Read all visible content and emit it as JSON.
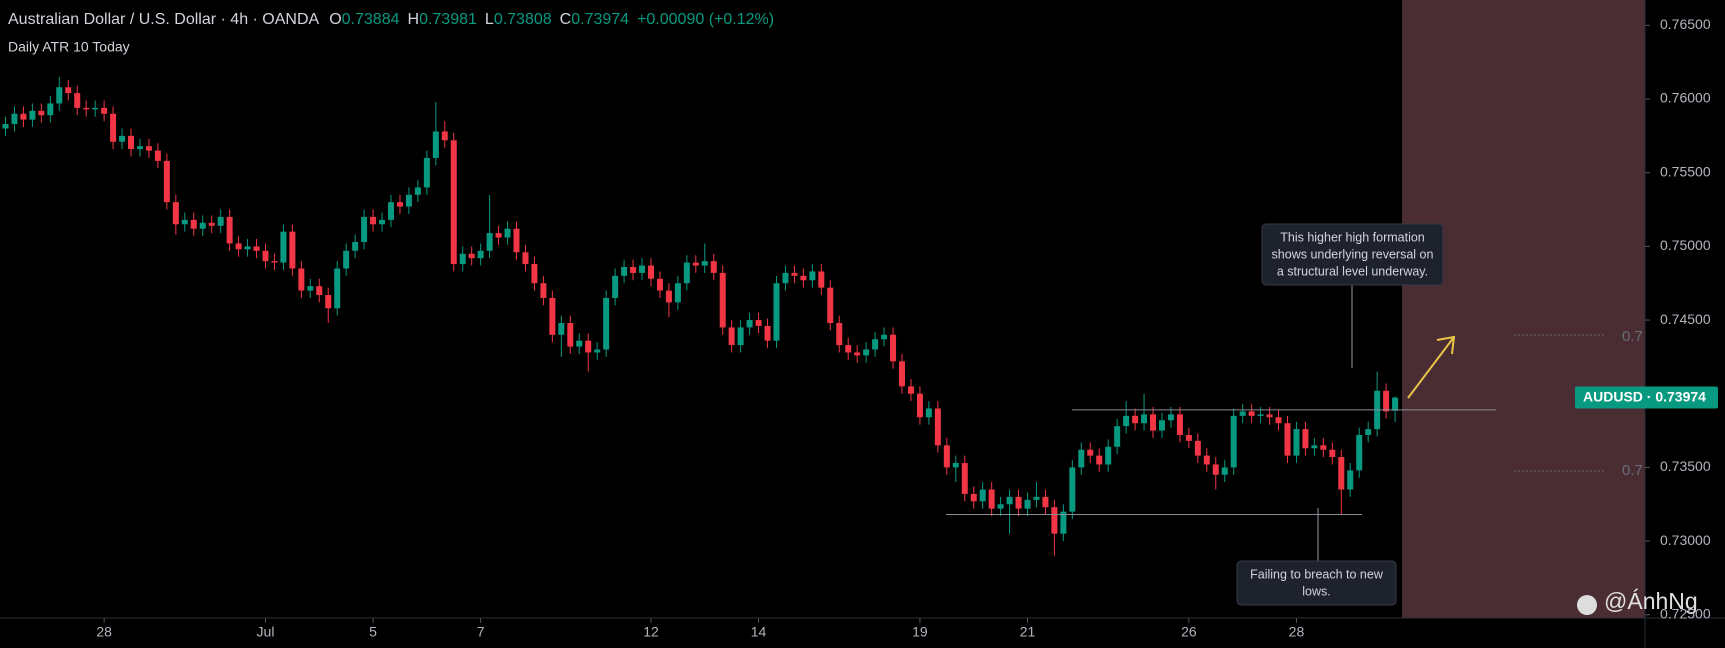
{
  "header": {
    "title": "Australian Dollar / U.S. Dollar · 4h · OANDA",
    "fields": [
      {
        "label": "O",
        "value": "0.73884"
      },
      {
        "label": "H",
        "value": "0.73981"
      },
      {
        "label": "L",
        "value": "0.73808"
      },
      {
        "label": "C",
        "value": "0.73974"
      }
    ],
    "change": "+0.00090 (+0.12%)",
    "indicator": "Daily ATR 10 Today"
  },
  "chart_data": {
    "type": "candlestick",
    "up_color": "#089981",
    "down_color": "#f23645",
    "ylim": [
      0.72478,
      0.76672
    ],
    "yticks": [
      {
        "value": 0.725,
        "label": "0.72500"
      },
      {
        "value": 0.73,
        "label": "0.73000"
      },
      {
        "value": 0.735,
        "label": "0.73500"
      },
      {
        "value": 0.74,
        "label": "0.74000"
      },
      {
        "value": 0.745,
        "label": "0.74500"
      },
      {
        "value": 0.75,
        "label": "0.75000"
      },
      {
        "value": 0.755,
        "label": "0.75500"
      },
      {
        "value": 0.76,
        "label": "0.76000"
      },
      {
        "value": 0.765,
        "label": "0.76500"
      }
    ],
    "xticks": [
      {
        "value": 11,
        "label": "28"
      },
      {
        "value": 29,
        "label": "Jul"
      },
      {
        "value": 41,
        "label": "5"
      },
      {
        "value": 53,
        "label": "7"
      },
      {
        "value": 72,
        "label": "12"
      },
      {
        "value": 84,
        "label": "14"
      },
      {
        "value": 102,
        "label": "19"
      },
      {
        "value": 114,
        "label": "21"
      },
      {
        "value": 132,
        "label": "26"
      },
      {
        "value": 144,
        "label": "28"
      }
    ],
    "candles": [
      [
        0.758,
        0.7588,
        0.7575,
        0.7583
      ],
      [
        0.7583,
        0.7595,
        0.7578,
        0.759
      ],
      [
        0.759,
        0.7595,
        0.7581,
        0.7586
      ],
      [
        0.7586,
        0.7597,
        0.7581,
        0.7592
      ],
      [
        0.7592,
        0.7597,
        0.7584,
        0.7589
      ],
      [
        0.7589,
        0.7602,
        0.7584,
        0.7597
      ],
      [
        0.7597,
        0.7615,
        0.7592,
        0.7608
      ],
      [
        0.7608,
        0.7613,
        0.7599,
        0.7604
      ],
      [
        0.7604,
        0.7609,
        0.7589,
        0.7594
      ],
      [
        0.7594,
        0.7599,
        0.7588,
        0.7593
      ],
      [
        0.7593,
        0.7599,
        0.7588,
        0.7594
      ],
      [
        0.7594,
        0.7599,
        0.7585,
        0.759
      ],
      [
        0.759,
        0.7595,
        0.7566,
        0.7571
      ],
      [
        0.7571,
        0.758,
        0.7566,
        0.7575
      ],
      [
        0.7575,
        0.758,
        0.7561,
        0.7566
      ],
      [
        0.7566,
        0.7573,
        0.7561,
        0.7568
      ],
      [
        0.7568,
        0.7573,
        0.756,
        0.7565
      ],
      [
        0.7565,
        0.757,
        0.7553,
        0.7558
      ],
      [
        0.7558,
        0.7563,
        0.7525,
        0.753
      ],
      [
        0.753,
        0.7535,
        0.7508,
        0.7515
      ],
      [
        0.7515,
        0.7523,
        0.751,
        0.7518
      ],
      [
        0.7518,
        0.7523,
        0.7507,
        0.7512
      ],
      [
        0.7512,
        0.7521,
        0.7507,
        0.7516
      ],
      [
        0.7516,
        0.7521,
        0.7509,
        0.7514
      ],
      [
        0.7514,
        0.7525,
        0.7509,
        0.752
      ],
      [
        0.752,
        0.7525,
        0.7497,
        0.7502
      ],
      [
        0.7502,
        0.7507,
        0.7493,
        0.7498
      ],
      [
        0.7498,
        0.7505,
        0.7493,
        0.75
      ],
      [
        0.75,
        0.7505,
        0.7492,
        0.7497
      ],
      [
        0.7497,
        0.7502,
        0.7485,
        0.749
      ],
      [
        0.749,
        0.7495,
        0.7484,
        0.7489
      ],
      [
        0.7489,
        0.7515,
        0.7484,
        0.751
      ],
      [
        0.751,
        0.7515,
        0.748,
        0.7485
      ],
      [
        0.7485,
        0.749,
        0.7465,
        0.747
      ],
      [
        0.747,
        0.7478,
        0.7465,
        0.7473
      ],
      [
        0.7473,
        0.7478,
        0.7462,
        0.7467
      ],
      [
        0.7467,
        0.7472,
        0.7448,
        0.7458
      ],
      [
        0.7458,
        0.749,
        0.7453,
        0.7485
      ],
      [
        0.7485,
        0.7502,
        0.748,
        0.7497
      ],
      [
        0.7497,
        0.7508,
        0.7492,
        0.7503
      ],
      [
        0.7503,
        0.7525,
        0.7498,
        0.752
      ],
      [
        0.752,
        0.7525,
        0.751,
        0.7515
      ],
      [
        0.7515,
        0.7523,
        0.751,
        0.7518
      ],
      [
        0.7518,
        0.7535,
        0.7513,
        0.753
      ],
      [
        0.753,
        0.7535,
        0.7522,
        0.7527
      ],
      [
        0.7527,
        0.754,
        0.7522,
        0.7535
      ],
      [
        0.7535,
        0.7545,
        0.753,
        0.754
      ],
      [
        0.754,
        0.7565,
        0.7535,
        0.756
      ],
      [
        0.756,
        0.7598,
        0.7555,
        0.7578
      ],
      [
        0.7578,
        0.7585,
        0.7567,
        0.7572
      ],
      [
        0.7572,
        0.7577,
        0.7483,
        0.7488
      ],
      [
        0.7488,
        0.75,
        0.7483,
        0.7495
      ],
      [
        0.7495,
        0.75,
        0.7487,
        0.7492
      ],
      [
        0.7492,
        0.7502,
        0.7487,
        0.7497
      ],
      [
        0.7497,
        0.7535,
        0.7492,
        0.7509
      ],
      [
        0.7509,
        0.7514,
        0.7501,
        0.7506
      ],
      [
        0.7506,
        0.7517,
        0.7501,
        0.7512
      ],
      [
        0.7512,
        0.7517,
        0.7491,
        0.7496
      ],
      [
        0.7496,
        0.7501,
        0.7483,
        0.7488
      ],
      [
        0.7488,
        0.7493,
        0.747,
        0.7475
      ],
      [
        0.7475,
        0.748,
        0.746,
        0.7465
      ],
      [
        0.7465,
        0.747,
        0.7435,
        0.744
      ],
      [
        0.744,
        0.7453,
        0.7425,
        0.7448
      ],
      [
        0.7448,
        0.7453,
        0.7427,
        0.7432
      ],
      [
        0.7432,
        0.7441,
        0.7427,
        0.7436
      ],
      [
        0.7436,
        0.7441,
        0.7415,
        0.7428
      ],
      [
        0.7428,
        0.7435,
        0.7423,
        0.743
      ],
      [
        0.743,
        0.747,
        0.7425,
        0.7465
      ],
      [
        0.7465,
        0.7485,
        0.746,
        0.748
      ],
      [
        0.748,
        0.7491,
        0.7475,
        0.7486
      ],
      [
        0.7486,
        0.7491,
        0.7477,
        0.7482
      ],
      [
        0.7482,
        0.7492,
        0.7477,
        0.7487
      ],
      [
        0.7487,
        0.7492,
        0.7473,
        0.7478
      ],
      [
        0.7478,
        0.7483,
        0.7465,
        0.747
      ],
      [
        0.747,
        0.7475,
        0.7452,
        0.7462
      ],
      [
        0.7462,
        0.748,
        0.7457,
        0.7475
      ],
      [
        0.7475,
        0.7494,
        0.747,
        0.7489
      ],
      [
        0.7489,
        0.7494,
        0.7482,
        0.7487
      ],
      [
        0.7487,
        0.7502,
        0.7482,
        0.749
      ],
      [
        0.749,
        0.7495,
        0.7477,
        0.7482
      ],
      [
        0.7482,
        0.7487,
        0.744,
        0.7445
      ],
      [
        0.7445,
        0.745,
        0.7428,
        0.7433
      ],
      [
        0.7433,
        0.745,
        0.7428,
        0.7445
      ],
      [
        0.7445,
        0.7455,
        0.744,
        0.745
      ],
      [
        0.745,
        0.7455,
        0.7441,
        0.7446
      ],
      [
        0.7446,
        0.7451,
        0.7431,
        0.7436
      ],
      [
        0.7436,
        0.748,
        0.7431,
        0.7475
      ],
      [
        0.7475,
        0.7487,
        0.747,
        0.7482
      ],
      [
        0.7482,
        0.7487,
        0.7475,
        0.748
      ],
      [
        0.748,
        0.7485,
        0.7472,
        0.7477
      ],
      [
        0.7477,
        0.7488,
        0.7472,
        0.7483
      ],
      [
        0.7483,
        0.7488,
        0.7467,
        0.7472
      ],
      [
        0.7472,
        0.7477,
        0.7443,
        0.7448
      ],
      [
        0.7448,
        0.7453,
        0.7428,
        0.7433
      ],
      [
        0.7433,
        0.7438,
        0.7423,
        0.7428
      ],
      [
        0.7428,
        0.7433,
        0.7421,
        0.7426
      ],
      [
        0.7426,
        0.7435,
        0.7421,
        0.743
      ],
      [
        0.743,
        0.7442,
        0.7425,
        0.7437
      ],
      [
        0.7437,
        0.7445,
        0.7432,
        0.744
      ],
      [
        0.744,
        0.7445,
        0.7417,
        0.7422
      ],
      [
        0.7422,
        0.7427,
        0.74,
        0.7405
      ],
      [
        0.7405,
        0.741,
        0.7395,
        0.74
      ],
      [
        0.74,
        0.7405,
        0.7379,
        0.7384
      ],
      [
        0.7384,
        0.7395,
        0.7379,
        0.739
      ],
      [
        0.739,
        0.7395,
        0.736,
        0.7365
      ],
      [
        0.7365,
        0.737,
        0.7345,
        0.735
      ],
      [
        0.735,
        0.7358,
        0.734,
        0.7353
      ],
      [
        0.7353,
        0.7358,
        0.7327,
        0.7332
      ],
      [
        0.7332,
        0.7337,
        0.7322,
        0.7327
      ],
      [
        0.7327,
        0.734,
        0.7322,
        0.7335
      ],
      [
        0.7335,
        0.734,
        0.7317,
        0.7322
      ],
      [
        0.7322,
        0.733,
        0.7317,
        0.7325
      ],
      [
        0.7325,
        0.7335,
        0.7305,
        0.733
      ],
      [
        0.733,
        0.7335,
        0.7317,
        0.7322
      ],
      [
        0.7322,
        0.7333,
        0.7317,
        0.7328
      ],
      [
        0.7328,
        0.734,
        0.7323,
        0.733
      ],
      [
        0.733,
        0.7335,
        0.7318,
        0.7323
      ],
      [
        0.7323,
        0.7328,
        0.729,
        0.7305
      ],
      [
        0.7305,
        0.7325,
        0.73,
        0.732
      ],
      [
        0.732,
        0.7355,
        0.7315,
        0.735
      ],
      [
        0.735,
        0.7367,
        0.7345,
        0.7362
      ],
      [
        0.7362,
        0.7367,
        0.7353,
        0.7358
      ],
      [
        0.7358,
        0.7363,
        0.7347,
        0.7352
      ],
      [
        0.7352,
        0.7369,
        0.7347,
        0.7364
      ],
      [
        0.7364,
        0.7383,
        0.7359,
        0.7378
      ],
      [
        0.7378,
        0.7395,
        0.7373,
        0.7385
      ],
      [
        0.7385,
        0.739,
        0.7375,
        0.738
      ],
      [
        0.738,
        0.74,
        0.7375,
        0.7386
      ],
      [
        0.7386,
        0.7391,
        0.737,
        0.7375
      ],
      [
        0.7375,
        0.7387,
        0.737,
        0.7382
      ],
      [
        0.7382,
        0.7391,
        0.7377,
        0.7386
      ],
      [
        0.7386,
        0.7391,
        0.7367,
        0.7372
      ],
      [
        0.7372,
        0.7377,
        0.7363,
        0.7368
      ],
      [
        0.7368,
        0.7373,
        0.7353,
        0.7358
      ],
      [
        0.7358,
        0.7363,
        0.7347,
        0.7352
      ],
      [
        0.7352,
        0.7357,
        0.7335,
        0.7345
      ],
      [
        0.7345,
        0.7355,
        0.734,
        0.735
      ],
      [
        0.735,
        0.739,
        0.7345,
        0.7385
      ],
      [
        0.7385,
        0.7393,
        0.738,
        0.7388
      ],
      [
        0.7388,
        0.7393,
        0.738,
        0.7385
      ],
      [
        0.7385,
        0.7391,
        0.738,
        0.7386
      ],
      [
        0.7386,
        0.7391,
        0.7379,
        0.7384
      ],
      [
        0.7384,
        0.7389,
        0.7375,
        0.738
      ],
      [
        0.738,
        0.7385,
        0.7353,
        0.7358
      ],
      [
        0.7358,
        0.7381,
        0.7353,
        0.7376
      ],
      [
        0.7376,
        0.7381,
        0.7358,
        0.7363
      ],
      [
        0.7363,
        0.737,
        0.7358,
        0.7365
      ],
      [
        0.7365,
        0.737,
        0.7357,
        0.7362
      ],
      [
        0.7362,
        0.7367,
        0.7352,
        0.7357
      ],
      [
        0.7357,
        0.7362,
        0.7318,
        0.7335
      ],
      [
        0.7335,
        0.7353,
        0.733,
        0.7348
      ],
      [
        0.7348,
        0.7377,
        0.7343,
        0.7372
      ],
      [
        0.7372,
        0.7381,
        0.7367,
        0.7376
      ],
      [
        0.7376,
        0.7415,
        0.7371,
        0.7402
      ],
      [
        0.7402,
        0.7407,
        0.7383,
        0.7388
      ],
      [
        0.73884,
        0.73981,
        0.73808,
        0.73974
      ]
    ],
    "levels": [
      0.7389,
      0.7318
    ],
    "price_tag": {
      "value": 0.73974,
      "label": "AUDUSD · 0.73974"
    },
    "annotations": [
      [
        "This higher high formation",
        "shows underlying reversal on",
        "a structural level underway."
      ],
      [
        "Failing to breach to new",
        "lows."
      ]
    ],
    "ghost_labels": [
      "0.7",
      "0.7"
    ]
  },
  "watermark": "@ÁnhNg"
}
